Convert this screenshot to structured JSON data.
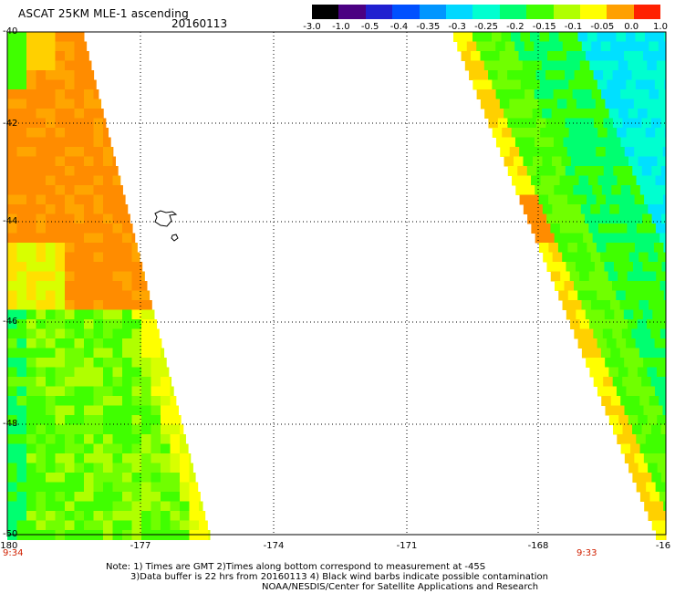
{
  "header": {
    "title": "ASCAT 25KM MLE-1 ascending",
    "date": "20160113"
  },
  "colorbar": {
    "labels": [
      "-3.0",
      "-1.0",
      "-0.5",
      "-0.4",
      "-0.35",
      "-0.3",
      "-0.25",
      "-0.2",
      "-0.15",
      "-0.1",
      "-0.05",
      "0.0",
      "1.0"
    ],
    "colors": [
      "#000000",
      "#4b0082",
      "#2020d0",
      "#0050ff",
      "#0096ff",
      "#00d8ff",
      "#00ffd0",
      "#00ff70",
      "#40ff00",
      "#b0ff00",
      "#ffff00",
      "#ffa000",
      "#ff2000"
    ]
  },
  "axes": {
    "lat_labels": [
      "-40",
      "-42",
      "-44",
      "-46",
      "-48",
      "-50"
    ],
    "lon_labels": [
      "-180",
      "-177",
      "-174",
      "-171",
      "-168",
      "-16"
    ]
  },
  "times": {
    "left": "9:34",
    "right": "9:33"
  },
  "notes": {
    "line1": "Note: 1) Times are GMT 2)Times along bottom correspond to measurement at -45S",
    "line2": "3)Data buffer is 22 hrs from 20160113 4) Black wind barbs indicate possible contamination",
    "line3": "NOAA/NESDIS/Center for Satellite Applications and Research"
  }
}
